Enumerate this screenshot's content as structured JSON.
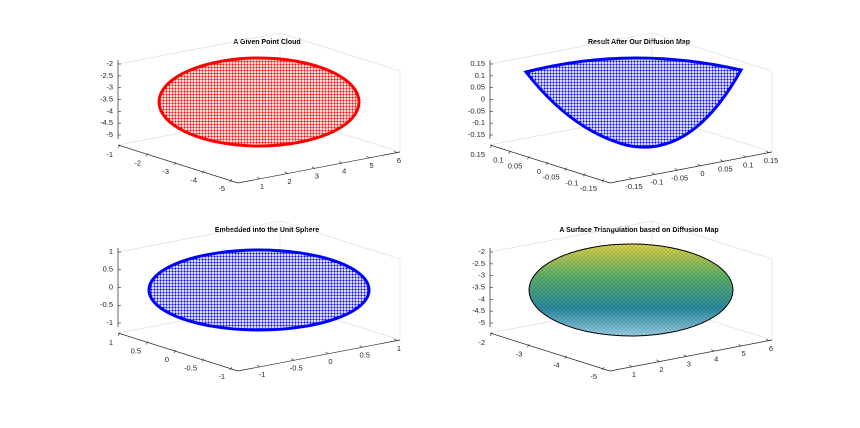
{
  "chart_data": [
    {
      "type": "scatter3d",
      "title": "A Given Point Cloud",
      "color": "#ff0000",
      "zlim": [
        -5,
        -2
      ],
      "zticks": [
        -2,
        -2.5,
        -3,
        -3.5,
        -4,
        -4.5,
        -5
      ],
      "ylim": [
        -1,
        -5
      ],
      "yticks": [
        -1,
        -2,
        -3,
        -4,
        -5
      ],
      "xlim": [
        1,
        6
      ],
      "xticks": [
        1,
        2,
        3,
        4,
        5,
        6
      ]
    },
    {
      "type": "scatter3d",
      "title": "Result After Our Diffusion Map",
      "color": "#0000ff",
      "zlim": [
        -0.15,
        0.15
      ],
      "zticks": [
        0.15,
        0.1,
        0.05,
        0,
        -0.05,
        -0.1,
        -0.15
      ],
      "ylim": [
        0.15,
        -0.15
      ],
      "yticks": [
        0.15,
        0.1,
        0.05,
        0,
        -0.05,
        -0.1,
        -0.15
      ],
      "xlim": [
        -0.15,
        0.15
      ],
      "xticks": [
        -0.15,
        -0.1,
        -0.05,
        0,
        0.05,
        0.1,
        0.15
      ]
    },
    {
      "type": "scatter3d",
      "title": "Embedded into the Unit Sphere",
      "color": "#0000ff",
      "zlim": [
        -1,
        1
      ],
      "zticks": [
        1,
        0.5,
        0,
        -0.5,
        -1
      ],
      "ylim": [
        1,
        -1
      ],
      "yticks": [
        1,
        0.5,
        0,
        -0.5,
        -1
      ],
      "xlim": [
        -1,
        1
      ],
      "xticks": [
        -1,
        -0.5,
        0,
        0.5,
        1
      ]
    },
    {
      "type": "surface",
      "title": "A Surface Triangulation based on Diffusion Map",
      "zlim": [
        -5,
        -2
      ],
      "zticks": [
        -2,
        -2.5,
        -3,
        -3.5,
        -4,
        -4.5,
        -5
      ],
      "ylim": [
        -2,
        -5
      ],
      "yticks": [
        -2,
        -3,
        -4,
        -5
      ],
      "xlim": [
        1,
        6
      ],
      "xticks": [
        1,
        2,
        3,
        4,
        5,
        6
      ]
    }
  ]
}
